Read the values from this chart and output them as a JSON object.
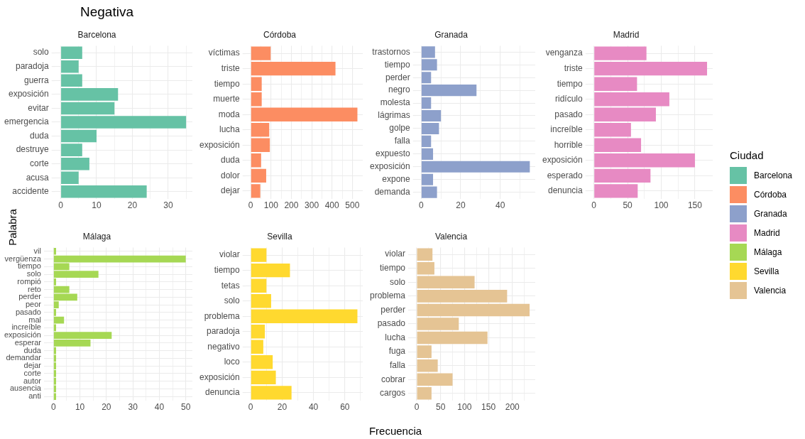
{
  "chart_data": [
    {
      "type": "bar",
      "orientation": "horizontal",
      "title": "Negativa",
      "ylabel": "Palabra",
      "legend": "right",
      "legend_title": "Ciudad",
      "grid": true,
      "categories": [
        "solo",
        "paradoja",
        "guerra",
        "exposición",
        "evitar",
        "emergencia",
        "duda",
        "destruye",
        "corte",
        "acusa",
        "accidente"
      ],
      "series": [
        {
          "name": "Barcelona",
          "color": "#66c2a5",
          "values": [
            6,
            5,
            6,
            16,
            15,
            35,
            10,
            6,
            8,
            5,
            24
          ]
        }
      ],
      "xlim": [
        -1.75,
        36.75
      ],
      "xticks": [
        0,
        {
          "value": 5,
          "label": null
        },
        10,
        {
          "value": 15,
          "label": null
        },
        20,
        {
          "value": 25,
          "label": null
        },
        30,
        {
          "value": 35,
          "label": null
        }
      ]
    },
    {
      "type": "bar",
      "orientation": "horizontal",
      "legend": "right",
      "grid": true,
      "categories": [
        "víctimas",
        "triste",
        "tiempo",
        "muerte",
        "moda",
        "lucha",
        "exposición",
        "duda",
        "dolor",
        "dejar"
      ],
      "series": [
        {
          "name": "Córdoba",
          "color": "#fc8d62",
          "values": [
            98,
            417,
            54,
            54,
            525,
            91,
            94,
            51,
            76,
            47
          ]
        }
      ],
      "xlim": [
        -26.25,
        551.25
      ],
      "xticks": [
        0,
        {
          "value": 50,
          "label": null
        },
        100,
        {
          "value": 150,
          "label": null
        },
        200,
        {
          "value": 250,
          "label": null
        },
        300,
        {
          "value": 350,
          "label": null
        },
        400,
        {
          "value": 450,
          "label": null
        },
        500
      ]
    },
    {
      "type": "bar",
      "orientation": "horizontal",
      "legend": "right",
      "grid": true,
      "categories": [
        "trastornos",
        "tiempo",
        "perder",
        "negro",
        "molesta",
        "lágrimas",
        "golpe",
        "falla",
        "expuesto",
        "exposición",
        "expone",
        "demanda"
      ],
      "series": [
        {
          "name": "Granada",
          "color": "#8da0cb",
          "values": [
            7,
            8,
            5,
            28,
            5,
            10,
            9,
            5,
            6,
            55,
            6,
            8
          ]
        }
      ],
      "xlim": [
        -2.75,
        57.75
      ],
      "xticks": [
        0,
        {
          "value": 10,
          "label": null
        },
        20,
        {
          "value": 30,
          "label": null
        },
        40,
        {
          "value": 50,
          "label": null
        }
      ]
    },
    {
      "type": "bar",
      "orientation": "horizontal",
      "legend": "right",
      "grid": true,
      "categories": [
        "venganza",
        "triste",
        "tiempo",
        "ridículo",
        "pasado",
        "increíble",
        "horrible",
        "exposición",
        "esperado",
        "denuncia"
      ],
      "series": [
        {
          "name": "Madrid",
          "color": "#e78ac3",
          "values": [
            78,
            168,
            64,
            112,
            92,
            55,
            70,
            150,
            84,
            65
          ]
        }
      ],
      "xlim": [
        -8.4,
        176.4
      ],
      "xticks": [
        0,
        {
          "value": 25,
          "label": null
        },
        50,
        {
          "value": 75,
          "label": null
        },
        100,
        {
          "value": 125,
          "label": null
        },
        150
      ]
    },
    {
      "type": "bar",
      "orientation": "horizontal",
      "legend": "right",
      "grid": true,
      "categories": [
        "vil",
        "vergüenza",
        "tiempo",
        "solo",
        "rompió",
        "reto",
        "perder",
        "peor",
        "pasado",
        "mal",
        "increíble",
        "exposición",
        "esperar",
        "duda",
        "demandar",
        "dejar",
        "corte",
        "autor",
        "ausencia",
        "anti"
      ],
      "series": [
        {
          "name": "Málaga",
          "color": "#a6d854",
          "values": [
            1,
            50,
            6,
            17,
            1,
            6,
            9,
            2,
            1,
            4,
            1,
            22,
            14,
            1,
            1,
            1,
            1,
            1,
            1,
            1
          ]
        }
      ],
      "xlim": [
        -2.5,
        52.5
      ],
      "xticks": [
        0,
        {
          "value": 5,
          "label": null
        },
        10,
        {
          "value": 15,
          "label": null
        },
        20,
        {
          "value": 25,
          "label": null
        },
        30,
        {
          "value": 35,
          "label": null
        },
        40,
        {
          "value": 45,
          "label": null
        },
        50
      ]
    },
    {
      "type": "bar",
      "orientation": "horizontal",
      "legend": "right",
      "xlabel": "Frecuencia",
      "grid": true,
      "categories": [
        "violar",
        "tiempo",
        "tetas",
        "solo",
        "problema",
        "paradoja",
        "negativo",
        "loco",
        "exposición",
        "denuncia"
      ],
      "series": [
        {
          "name": "Sevilla",
          "color": "#ffd92f",
          "values": [
            10,
            25,
            10,
            13,
            68,
            9,
            8,
            14,
            16,
            26
          ]
        }
      ],
      "xlim": [
        -3.4,
        71.4
      ],
      "xticks": [
        0,
        {
          "value": 10,
          "label": null
        },
        20,
        {
          "value": 30,
          "label": null
        },
        40,
        {
          "value": 50,
          "label": null
        },
        60,
        {
          "value": 70,
          "label": null
        }
      ]
    },
    {
      "type": "bar",
      "orientation": "horizontal",
      "legend": "right",
      "grid": true,
      "categories": [
        "violar",
        "tiempo",
        "solo",
        "problema",
        "perder",
        "pasado",
        "lucha",
        "fuga",
        "falla",
        "cobrar",
        "cargos"
      ],
      "series": [
        {
          "name": "Valencia",
          "color": "#e5c494",
          "values": [
            33,
            37,
            121,
            189,
            236,
            88,
            148,
            31,
            44,
            75,
            31
          ]
        }
      ],
      "xlim": [
        -11.8,
        247.8
      ],
      "xticks": [
        0,
        {
          "value": 25,
          "label": null
        },
        50,
        {
          "value": 75,
          "label": null
        },
        100,
        {
          "value": 125,
          "label": null
        },
        150,
        {
          "value": 175,
          "label": null
        },
        200,
        {
          "value": 225,
          "label": null
        }
      ]
    }
  ]
}
